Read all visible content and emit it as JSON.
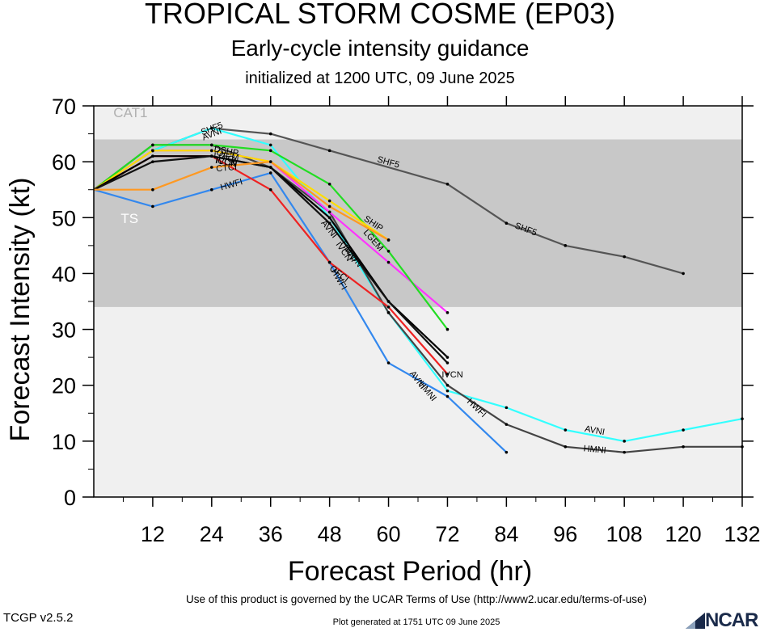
{
  "header": {
    "title": "TROPICAL STORM COSME (EP03)",
    "subtitle": "Early-cycle intensity guidance",
    "init": "initialized at 1200 UTC, 09 June 2025"
  },
  "footer": {
    "terms": "Use of this product is governed by the UCAR Terms of Use (http://www2.ucar.edu/terms-of-use)",
    "version": "TCGP v2.5.2",
    "generated": "Plot generated at 1751 UTC   09 June 2025",
    "logo_text": "NCAR"
  },
  "chart_data": {
    "type": "line",
    "xlabel": "Forecast Period (hr)",
    "ylabel": "Forecast Intensity (kt)",
    "xlim": [
      0,
      132
    ],
    "ylim": [
      0,
      70
    ],
    "xticks": [
      12,
      24,
      36,
      48,
      60,
      72,
      84,
      96,
      108,
      120,
      132
    ],
    "yticks": [
      0,
      10,
      20,
      30,
      40,
      50,
      60,
      70
    ],
    "bands": [
      {
        "label": "TS",
        "from": 34,
        "to": 64,
        "color": "#c8c8c8"
      },
      {
        "label": "CAT1",
        "from": 64,
        "to": 70,
        "color": "#f0f0f0"
      }
    ],
    "below_band_color": "#f0f0f0",
    "series": [
      {
        "name": "SHF5",
        "color": "#555555",
        "x": [
          0,
          12,
          24,
          36,
          48,
          72,
          84,
          96,
          108,
          120
        ],
        "y": [
          55,
          62,
          66,
          65,
          62,
          56,
          49,
          45,
          43,
          40
        ],
        "labels": [
          {
            "x": 24,
            "y": 66
          },
          {
            "x": 60,
            "y": 60
          },
          {
            "x": 88,
            "y": 48
          }
        ]
      },
      {
        "name": "AVNI",
        "color": "#33ffff",
        "x": [
          0,
          12,
          24,
          36,
          48,
          60,
          72,
          84,
          96,
          108,
          120,
          132
        ],
        "y": [
          55,
          62,
          66,
          63,
          50,
          33,
          19,
          16,
          12,
          10,
          12,
          14
        ],
        "labels": [
          {
            "x": 24,
            "y": 65
          },
          {
            "x": 48,
            "y": 48
          },
          {
            "x": 66,
            "y": 21
          },
          {
            "x": 102,
            "y": 12
          }
        ]
      },
      {
        "name": "HMNI",
        "color": "#444444",
        "x": [
          0,
          12,
          24,
          36,
          48,
          60,
          72,
          84,
          96,
          108,
          120,
          132
        ],
        "y": [
          55,
          63,
          63,
          59,
          51,
          33,
          20,
          13,
          9,
          8,
          9,
          9
        ],
        "labels": [
          {
            "x": 52,
            "y": 44
          },
          {
            "x": 68,
            "y": 19
          },
          {
            "x": 102,
            "y": 8.6
          }
        ]
      },
      {
        "name": "HWFI",
        "color": "#3388ee",
        "x": [
          0,
          12,
          24,
          36,
          48,
          60,
          72,
          84
        ],
        "y": [
          55,
          52,
          55,
          58,
          42,
          24,
          18,
          8
        ],
        "labels": [
          {
            "x": 28,
            "y": 56
          },
          {
            "x": 50,
            "y": 39
          },
          {
            "x": 78,
            "y": 16
          }
        ]
      },
      {
        "name": "DSHP",
        "color": "#ff33ff",
        "x": [
          0,
          12,
          24,
          36,
          48,
          60,
          72
        ],
        "y": [
          55,
          62,
          62,
          60,
          51,
          42,
          33
        ],
        "labels": [
          {
            "x": 27,
            "y": 62
          }
        ]
      },
      {
        "name": "LGEM",
        "color": "#22dd22",
        "x": [
          0,
          12,
          24,
          36,
          48,
          60,
          72
        ],
        "y": [
          55,
          63,
          63,
          62,
          56,
          44,
          30
        ],
        "labels": [
          {
            "x": 27,
            "y": 61
          },
          {
            "x": 57,
            "y": 46
          }
        ]
      },
      {
        "name": "SHIP",
        "color": "#ffdd00",
        "x": [
          0,
          12,
          24,
          36,
          48,
          60
        ],
        "y": [
          55,
          62,
          62,
          60,
          53,
          46
        ],
        "labels": [
          {
            "x": 57,
            "y": 49
          }
        ]
      },
      {
        "name": "OFCI",
        "color": "#ee2222",
        "x": [
          0,
          12,
          24,
          36,
          48,
          60,
          72
        ],
        "y": [
          55,
          61,
          61,
          55,
          42,
          34,
          22
        ],
        "labels": [
          {
            "x": 27,
            "y": 61
          },
          {
            "x": 50,
            "y": 40
          }
        ]
      },
      {
        "name": "IVCN",
        "color": "#000000",
        "x": [
          0,
          12,
          24,
          36,
          48,
          60,
          72
        ],
        "y": [
          55,
          61,
          61,
          59,
          50,
          35,
          25
        ],
        "labels": [
          {
            "x": 27,
            "y": 60
          },
          {
            "x": 51,
            "y": 44
          },
          {
            "x": 73,
            "y": 22
          }
        ]
      },
      {
        "name": "ICON",
        "color": "#111111",
        "x": [
          0,
          12,
          24,
          36,
          48,
          60,
          72
        ],
        "y": [
          55,
          60,
          61,
          59,
          49,
          35,
          24
        ],
        "labels": [
          {
            "x": 27,
            "y": 60
          },
          {
            "x": 53,
            "y": 43
          }
        ]
      },
      {
        "name": "CTCI",
        "color": "#ff9922",
        "x": [
          0,
          12,
          24,
          36,
          48,
          60
        ],
        "y": [
          55,
          55,
          59,
          60,
          52,
          46
        ],
        "labels": [
          {
            "x": 27,
            "y": 59
          }
        ]
      }
    ],
    "band_labels": [
      {
        "text": "CAT1",
        "x": 4,
        "y": 68
      },
      {
        "text": "TS",
        "x": 5.5,
        "y": 49
      }
    ]
  }
}
